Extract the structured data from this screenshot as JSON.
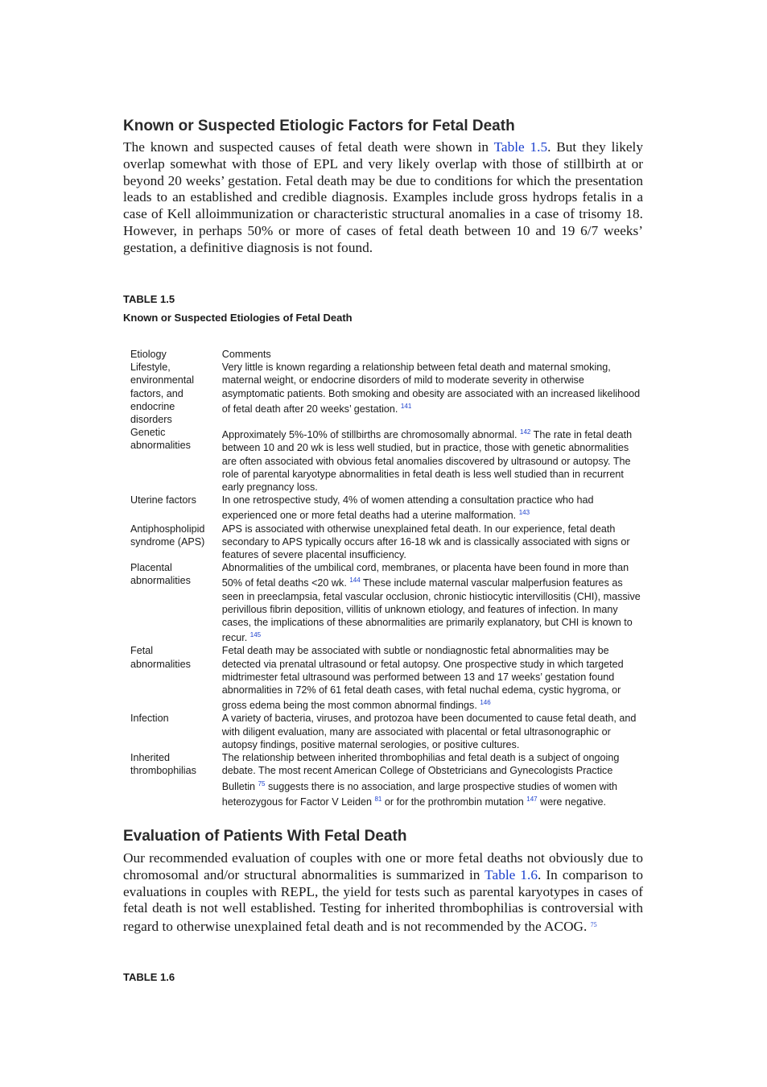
{
  "section1": {
    "heading": "Known or Suspected Etiologic Factors for Fetal Death",
    "paragraph": [
      {
        "t": "The known and suspected causes of fetal death were shown in "
      },
      {
        "link": "Table 1.5"
      },
      {
        "t": ". But they likely overlap somewhat with those of EPL and very likely overlap with those of stillbirth at or beyond 20 weeks’ gestation. Fetal death may be due to conditions for which the presentation leads to an established and credible diagnosis. Examples include gross hydrops fetalis in a case of Kell alloimmunization or characteristic structural anomalies in a case of trisomy 18. However, in perhaps 50% or more of cases of fetal death between 10 and 19 6/7 weeks’ gestation, a definitive diagnosis is not found."
      }
    ]
  },
  "table": {
    "label": "TABLE 1.5",
    "caption": "Known or Suspected Etiologies of Fetal Death",
    "header": [
      "Etiology",
      "Comments"
    ],
    "rows": [
      {
        "etiology": "Lifestyle, environmental factors, and endocrine disorders",
        "comments": [
          {
            "t": "Very little is known regarding a relationship between fetal death and maternal smoking, maternal weight, or endocrine disorders of mild to moderate severity in otherwise asymptomatic patients. Both smoking and obesity are associated with an increased likelihood of fetal death after 20 weeks’ gestation. "
          },
          {
            "sup": "141"
          }
        ]
      },
      {
        "etiology": "Genetic abnormalities",
        "comments": [
          {
            "t": "Approximately 5%-10% of stillbirths are chromosomally abnormal. "
          },
          {
            "sup": "142"
          },
          {
            "t": " The rate in fetal death between 10 and 20 wk is less well studied, but in practice, those with genetic abnormalities are often associated with obvious fetal anomalies discovered by ultrasound or autopsy. The role of parental karyotype abnormalities in fetal death is less well studied than in recurrent early pregnancy loss."
          }
        ]
      },
      {
        "etiology": "Uterine factors",
        "comments": [
          {
            "t": "In one retrospective study, 4% of women attending a consultation practice who had experienced one or more fetal deaths had a uterine malformation. "
          },
          {
            "sup": "143"
          }
        ]
      },
      {
        "etiology": "Antiphospholipid syndrome (APS)",
        "comments": [
          {
            "t": "APS is associated with otherwise unexplained fetal death. In our experience, fetal death secondary to APS typically occurs after 16-18 wk and is classically associated with signs or features of severe placental insufficiency."
          }
        ]
      },
      {
        "etiology": "Placental abnormalities",
        "comments": [
          {
            "t": "Abnormalities of the umbilical cord, membranes, or placenta have been found in more than 50% of fetal deaths <20 wk. "
          },
          {
            "sup": "144"
          },
          {
            "t": " These include maternal vascular malperfusion features as seen in preeclampsia, fetal vascular occlusion, chronic histiocytic intervillositis (CHI), massive perivillous fibrin deposition, villitis of unknown etiology, and features of infection. In many cases, the implications of these abnormalities are primarily explanatory, but CHI is known to recur. "
          },
          {
            "sup": "145"
          }
        ]
      },
      {
        "etiology": "Fetal abnormalities",
        "comments": [
          {
            "t": "Fetal death may be associated with subtle or nondiagnostic fetal abnormalities may be detected via prenatal ultrasound or fetal autopsy. One prospective study in which targeted midtrimester fetal ultrasound was performed between 13 and 17 weeks’ gestation found abnormalities in 72% of 61 fetal death cases, with fetal nuchal edema, cystic hygroma, or gross edema being the most common abnormal findings. "
          },
          {
            "sup": "146"
          }
        ]
      },
      {
        "etiology": "Infection",
        "comments": [
          {
            "t": "A variety of bacteria, viruses, and protozoa have been documented to cause fetal death, and with diligent evaluation, many are associated with placental or fetal ultrasonographic or autopsy findings, positive maternal serologies, or positive cultures."
          }
        ]
      },
      {
        "etiology": "Inherited thrombophilias",
        "comments": [
          {
            "t": "The relationship between inherited thrombophilias and fetal death is a subject of ongoing debate. The most recent American College of Obstetricians and Gynecologists Practice Bulletin "
          },
          {
            "sup": "75"
          },
          {
            "t": " suggests there is no association, and large prospective studies of women with heterozygous for Factor V Leiden "
          },
          {
            "sup": "81"
          },
          {
            "t": " or for the prothrombin mutation "
          },
          {
            "sup": "147"
          },
          {
            "t": " were negative."
          }
        ]
      }
    ]
  },
  "section2": {
    "heading": "Evaluation of Patients With Fetal Death",
    "paragraph": [
      {
        "t": "Our recommended evaluation of couples with one or more fetal deaths not obviously due to chromosomal and/or structural abnormalities is summarized in "
      },
      {
        "link": "Table 1.6"
      },
      {
        "t": ". In comparison to evaluations in couples with REPL, the yield for tests such as parental karyotypes in cases of fetal death is not well established. Testing for inherited thrombophilias is controversial with regard to otherwise unexplained fetal death and is not recommended by the ACOG. "
      },
      {
        "sup": "75"
      }
    ],
    "next_table_label": "TABLE 1.6"
  }
}
